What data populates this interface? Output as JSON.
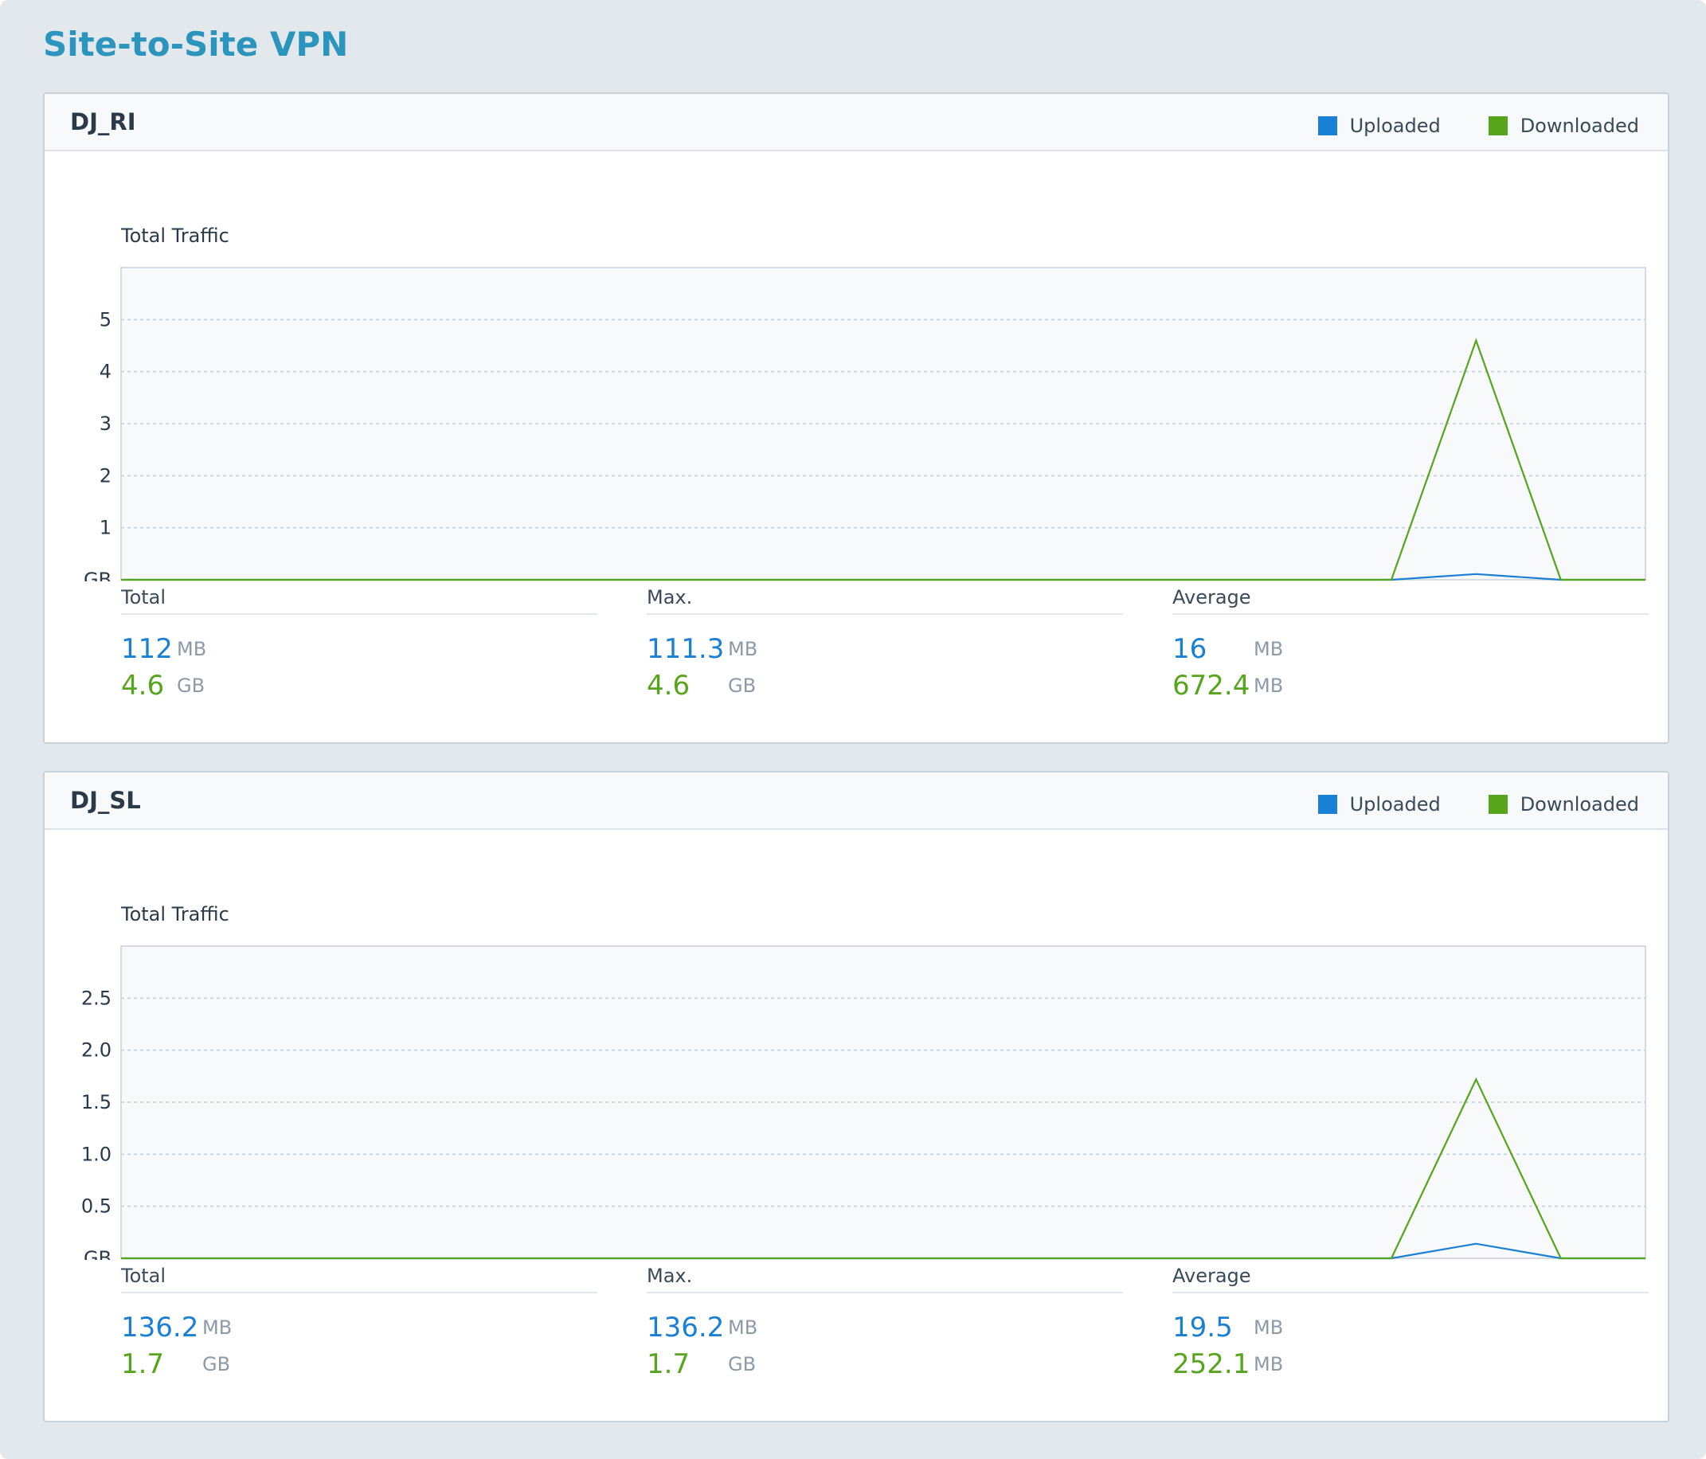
{
  "page": {
    "title": "Site-to-Site VPN"
  },
  "legend": {
    "uploaded": "Uploaded",
    "downloaded": "Downloaded",
    "uploaded_color": "#1a7fd6",
    "downloaded_color": "#56a51c"
  },
  "panels": [
    {
      "name": "DJ_RI",
      "stats": [
        {
          "label": "Total",
          "uploaded": {
            "value": "112",
            "unit": "MB"
          },
          "downloaded": {
            "value": "4.6",
            "unit": "GB"
          }
        },
        {
          "label": "Max.",
          "uploaded": {
            "value": "111.3",
            "unit": "MB"
          },
          "downloaded": {
            "value": "4.6",
            "unit": "GB"
          }
        },
        {
          "label": "Average",
          "uploaded": {
            "value": "16",
            "unit": "MB"
          },
          "downloaded": {
            "value": "672.4",
            "unit": "MB"
          }
        }
      ]
    },
    {
      "name": "DJ_SL",
      "stats": [
        {
          "label": "Total",
          "uploaded": {
            "value": "136.2",
            "unit": "MB"
          },
          "downloaded": {
            "value": "1.7",
            "unit": "GB"
          }
        },
        {
          "label": "Max.",
          "uploaded": {
            "value": "136.2",
            "unit": "MB"
          },
          "downloaded": {
            "value": "1.7",
            "unit": "GB"
          }
        },
        {
          "label": "Average",
          "uploaded": {
            "value": "19.5",
            "unit": "MB"
          },
          "downloaded": {
            "value": "252.1",
            "unit": "MB"
          }
        }
      ]
    }
  ],
  "chart_data": [
    {
      "type": "line",
      "title": "Total Traffic",
      "ylabel": "GB",
      "ylim": [
        0,
        6
      ],
      "yticks": [
        "5",
        "4",
        "3",
        "2",
        "1"
      ],
      "ytick_values": [
        5,
        4,
        3,
        2,
        1
      ],
      "grid": true,
      "legend_position": "top-right",
      "series": [
        {
          "name": "Uploaded",
          "color": "#1a7fd6",
          "values": [
            0,
            0,
            0,
            0,
            0,
            0,
            0,
            0,
            0,
            0,
            0,
            0,
            0,
            0,
            0,
            0,
            0.11,
            0,
            0
          ]
        },
        {
          "name": "Downloaded",
          "color": "#56a51c",
          "values": [
            0,
            0,
            0,
            0,
            0,
            0,
            0,
            0,
            0,
            0,
            0,
            0,
            0,
            0,
            0,
            0,
            4.6,
            0,
            0
          ]
        }
      ],
      "x": [
        0,
        1,
        2,
        3,
        4,
        5,
        6,
        7,
        8,
        9,
        10,
        11,
        12,
        13,
        14,
        15,
        16,
        17,
        18
      ]
    },
    {
      "type": "line",
      "title": "Total Traffic",
      "ylabel": "GB",
      "ylim": [
        0,
        3
      ],
      "yticks": [
        "2.5",
        "2.0",
        "1.5",
        "1.0",
        "0.5"
      ],
      "ytick_values": [
        2.5,
        2.0,
        1.5,
        1.0,
        0.5
      ],
      "grid": true,
      "legend_position": "top-right",
      "series": [
        {
          "name": "Uploaded",
          "color": "#1a7fd6",
          "values": [
            0,
            0,
            0,
            0,
            0,
            0,
            0,
            0,
            0,
            0,
            0,
            0,
            0,
            0,
            0,
            0,
            0.14,
            0,
            0
          ]
        },
        {
          "name": "Downloaded",
          "color": "#56a51c",
          "values": [
            0,
            0,
            0,
            0,
            0,
            0,
            0,
            0,
            0,
            0,
            0,
            0,
            0,
            0,
            0,
            0,
            1.72,
            0,
            0
          ]
        }
      ],
      "x": [
        0,
        1,
        2,
        3,
        4,
        5,
        6,
        7,
        8,
        9,
        10,
        11,
        12,
        13,
        14,
        15,
        16,
        17,
        18
      ]
    }
  ]
}
